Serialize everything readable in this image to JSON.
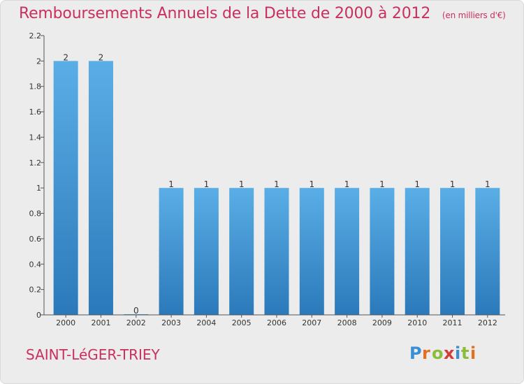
{
  "header": {
    "title": "Remboursements Annuels de la Dette de 2000 à 2012",
    "subtitle": "(en milliers d'€)"
  },
  "footer": {
    "place": "SAINT-LéGER-TRIEY",
    "logo_text": "Proxiti"
  },
  "colors": {
    "bar_top": "#5aaee6",
    "bar_bottom": "#2b79ba",
    "title": "#c8305d",
    "background": "#ececec"
  },
  "chart_data": {
    "type": "bar",
    "categories": [
      "2000",
      "2001",
      "2002",
      "2003",
      "2004",
      "2005",
      "2006",
      "2007",
      "2008",
      "2009",
      "2010",
      "2011",
      "2012"
    ],
    "values": [
      2,
      2,
      0,
      1,
      1,
      1,
      1,
      1,
      1,
      1,
      1,
      1,
      1
    ],
    "data_labels": [
      "2",
      "2",
      "0",
      "1",
      "1",
      "1",
      "1",
      "1",
      "1",
      "1",
      "1",
      "1",
      "1"
    ],
    "y_ticks": [
      "0",
      "0.2",
      "0.4",
      "0.6",
      "0.8",
      "1",
      "1.2",
      "1.4",
      "1.6",
      "1.8",
      "2",
      "2.2"
    ],
    "ylim": [
      0,
      2.2
    ],
    "title": "Remboursements Annuels de la Dette de 2000 à 2012",
    "xlabel": "",
    "ylabel": "",
    "grid": false
  }
}
